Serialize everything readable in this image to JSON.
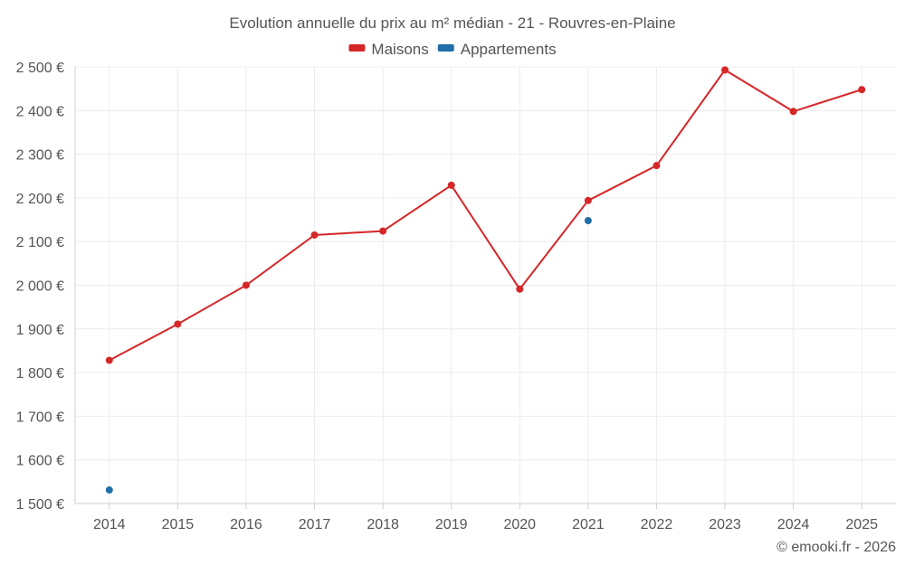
{
  "chart_data": {
    "type": "line",
    "title": "Evolution annuelle du prix au m² médian - 21 - Rouvres-en-Plaine",
    "xlabel": "",
    "ylabel": "",
    "categories": [
      "2014",
      "2015",
      "2016",
      "2017",
      "2018",
      "2019",
      "2020",
      "2021",
      "2022",
      "2023",
      "2024",
      "2025"
    ],
    "ylim": [
      1500,
      2500
    ],
    "y_ticks": [
      1500,
      1600,
      1700,
      1800,
      1900,
      2000,
      2100,
      2200,
      2300,
      2400,
      2500
    ],
    "y_tick_labels": [
      "1 500 €",
      "1 600 €",
      "1 700 €",
      "1 800 €",
      "1 900 €",
      "2 000 €",
      "2 100 €",
      "2 200 €",
      "2 300 €",
      "2 400 €",
      "2 500 €"
    ],
    "grid": true,
    "legend_position": "top-center",
    "series": [
      {
        "name": "Maisons",
        "color": "#d62728",
        "values": [
          1828,
          1911,
          2000,
          2115,
          2124,
          2229,
          1991,
          2194,
          2274,
          2493,
          2398,
          2448
        ]
      },
      {
        "name": "Appartements",
        "color": "#1f6fa8",
        "values": [
          1531,
          null,
          null,
          null,
          null,
          null,
          null,
          2148,
          null,
          null,
          null,
          null
        ]
      }
    ],
    "credit": "© emooki.fr - 2026"
  }
}
